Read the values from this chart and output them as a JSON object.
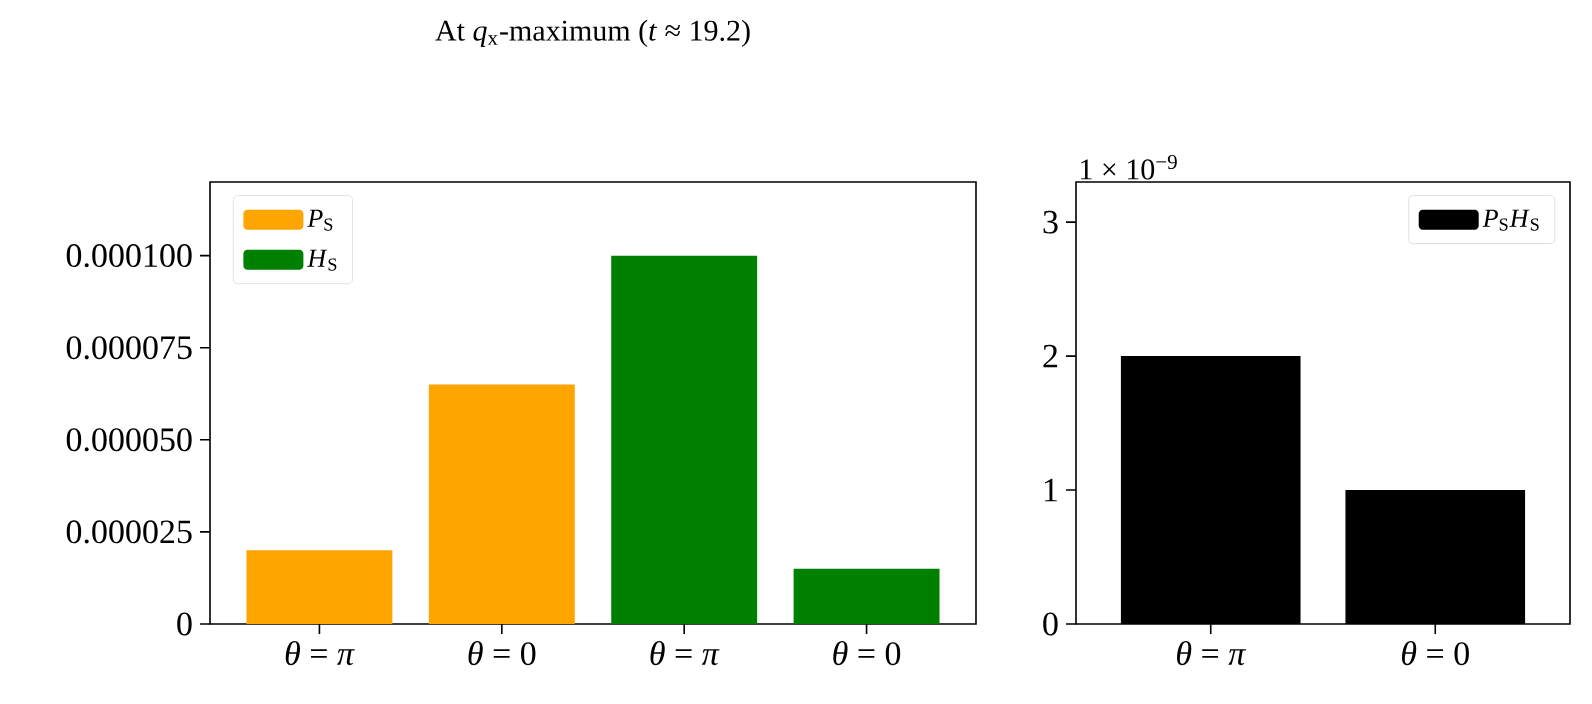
{
  "chart_data": [
    {
      "type": "bar",
      "title": "At *q*$_{x}$-maximum (*t* ≈ 19.2)",
      "categories": [
        "*θ* = *π*",
        "*θ* = 0",
        "*θ* = *π*",
        "*θ* = 0"
      ],
      "series": [
        {
          "name": "*P*$_{S}$",
          "color": "#ffa500",
          "values": [
            2e-05,
            6.5e-05,
            null,
            null
          ]
        },
        {
          "name": "*H*$_{S}$",
          "color": "#008000",
          "values": [
            null,
            null,
            0.0001,
            1.5e-05
          ]
        }
      ],
      "ylim": [
        0,
        0.00012
      ],
      "yticks": [
        0,
        {
          "value": 2.5e-05,
          "label": "0.000025"
        },
        {
          "value": 5e-05,
          "label": "0.000050"
        },
        {
          "value": 7.5e-05,
          "label": "0.000075"
        },
        {
          "value": 0.0001,
          "label": "0.000100"
        }
      ],
      "legend": "top left"
    },
    {
      "type": "bar",
      "categories": [
        "*θ* = *π*",
        "*θ* = 0"
      ],
      "series": [
        {
          "name": "*P*$_{S}$*H*$_{S}$",
          "color": "#000000",
          "values": [
            2.0,
            1.0
          ]
        }
      ],
      "ylim": [
        0,
        3.3
      ],
      "yticks": [
        0,
        1,
        2,
        3
      ],
      "annotations": [
        "1 × 10$^{−9}$"
      ],
      "legend": "top right"
    }
  ]
}
